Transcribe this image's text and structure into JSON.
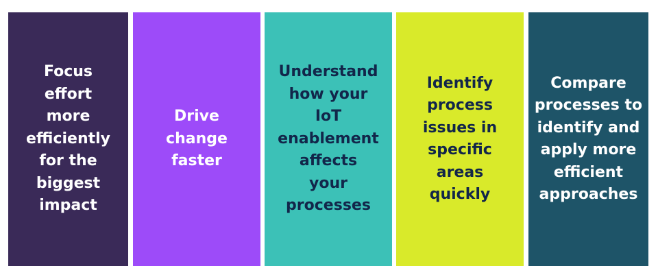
{
  "cards": [
    {
      "text": "Focus\neffort\nmore\nefficiently\nfor the\nbiggest\nimpact",
      "bg": "#3a2a58",
      "fg": "#ffffff"
    },
    {
      "text": "Drive\nchange\nfaster",
      "bg": "#9d4bf9",
      "fg": "#ffffff"
    },
    {
      "text": "Understand\nhow your\nIoT\nenablement\naffects\nyour\nprocesses",
      "bg": "#3cc1b7",
      "fg": "#12264a"
    },
    {
      "text": "Identify\nprocess\nissues in\nspecific\nareas\nquickly",
      "bg": "#d9ea2a",
      "fg": "#12264a"
    },
    {
      "text": "Compare\nprocesses to\nidentify and\napply more\nefficient\napproaches",
      "bg": "#1e5468",
      "fg": "#ffffff"
    }
  ]
}
